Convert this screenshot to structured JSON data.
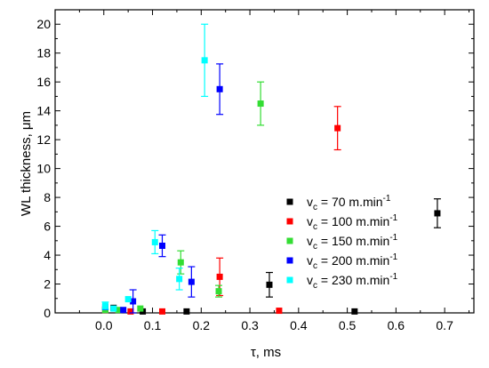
{
  "chart_data": {
    "type": "scatter",
    "xlabel": "τ, ms",
    "ylabel": "WL thickness, μm",
    "xlim": [
      -0.1,
      0.76
    ],
    "ylim": [
      0,
      21
    ],
    "x_ticks": [
      0.0,
      0.1,
      0.2,
      0.3,
      0.4,
      0.5,
      0.6,
      0.7
    ],
    "x_tick_labels": [
      "0.0",
      "0.1",
      "0.2",
      "0.3",
      "0.4",
      "0.5",
      "0.6",
      "0.7"
    ],
    "y_ticks": [
      0,
      2,
      4,
      6,
      8,
      10,
      12,
      14,
      16,
      18,
      20
    ],
    "y_tick_labels": [
      "0",
      "2",
      "4",
      "6",
      "8",
      "10",
      "12",
      "14",
      "16",
      "18",
      "20"
    ],
    "grid": false,
    "legend_position": "center-right",
    "series": [
      {
        "name_main": "v",
        "name_sub": "c",
        "name_rest": " = 70 m.min",
        "name_sup": "-1",
        "color": "#000000",
        "points": [
          {
            "x": 0.003,
            "y": 0.25
          },
          {
            "x": 0.02,
            "y": 0.35
          },
          {
            "x": 0.08,
            "y": 0.1
          },
          {
            "x": 0.17,
            "y": 0.1
          },
          {
            "x": 0.34,
            "y": 1.95,
            "err": 0.85
          },
          {
            "x": 0.515,
            "y": 0.1
          },
          {
            "x": 0.685,
            "y": 6.9,
            "err": 1.0
          }
        ]
      },
      {
        "name_main": "v",
        "name_sub": "c",
        "name_rest": " = 100 m.min",
        "name_sup": "-1",
        "color": "#ff0000",
        "points": [
          {
            "x": 0.003,
            "y": 0.2
          },
          {
            "x": 0.055,
            "y": 0.1
          },
          {
            "x": 0.12,
            "y": 0.1
          },
          {
            "x": 0.238,
            "y": 2.5,
            "err": 1.3
          },
          {
            "x": 0.36,
            "y": 0.15
          },
          {
            "x": 0.48,
            "y": 12.8,
            "err": 1.5
          }
        ]
      },
      {
        "name_main": "v",
        "name_sub": "c",
        "name_rest": " = 150 m.min",
        "name_sup": "-1",
        "color": "#33dd33",
        "points": [
          {
            "x": 0.003,
            "y": 0.2
          },
          {
            "x": 0.03,
            "y": 0.2
          },
          {
            "x": 0.075,
            "y": 0.3
          },
          {
            "x": 0.158,
            "y": 3.5,
            "err": 0.8
          },
          {
            "x": 0.236,
            "y": 1.5,
            "err": 0.4
          },
          {
            "x": 0.322,
            "y": 14.5,
            "err": 1.5
          }
        ]
      },
      {
        "name_main": "v",
        "name_sub": "c",
        "name_rest": " = 200 m.min",
        "name_sup": "-1",
        "color": "#0000ff",
        "points": [
          {
            "x": 0.003,
            "y": 0.4
          },
          {
            "x": 0.04,
            "y": 0.2
          },
          {
            "x": 0.06,
            "y": 0.8,
            "err": 0.8
          },
          {
            "x": 0.12,
            "y": 4.65,
            "err": 0.75
          },
          {
            "x": 0.18,
            "y": 2.15,
            "err": 1.05
          },
          {
            "x": 0.238,
            "y": 15.5,
            "err": 1.75
          }
        ]
      },
      {
        "name_main": "v",
        "name_sub": "c",
        "name_rest": " = 230 m.min",
        "name_sup": "-1",
        "color": "#00ffff",
        "points": [
          {
            "x": 0.003,
            "y": 0.5,
            "err": 0.25
          },
          {
            "x": 0.02,
            "y": 0.3
          },
          {
            "x": 0.05,
            "y": 0.95
          },
          {
            "x": 0.105,
            "y": 4.9,
            "err": 0.8
          },
          {
            "x": 0.155,
            "y": 2.35,
            "err": 0.75
          },
          {
            "x": 0.207,
            "y": 17.5,
            "err": 2.5
          }
        ]
      }
    ]
  }
}
